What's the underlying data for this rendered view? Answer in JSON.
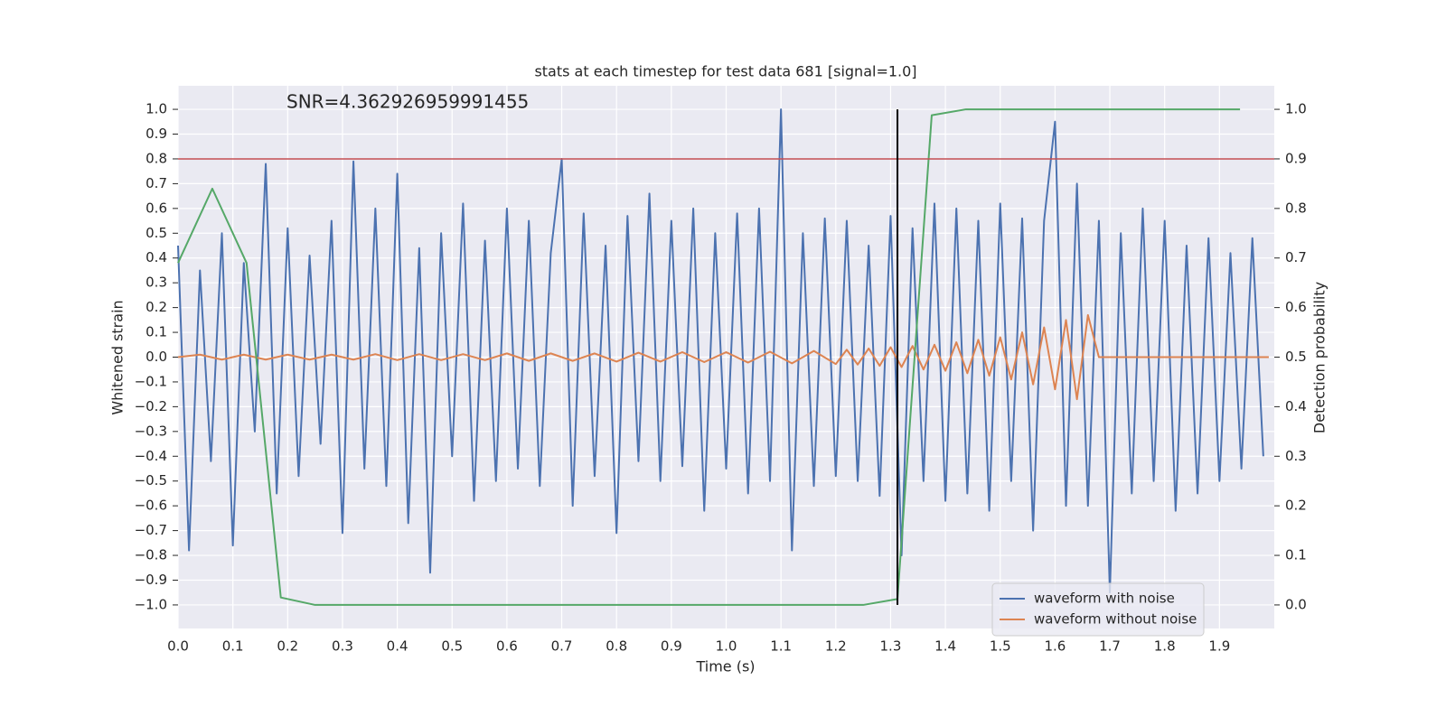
{
  "chart_data": {
    "type": "line",
    "title": "stats at each timestep for test data 681 [signal=1.0]",
    "x_label": "Time (s)",
    "y_label": "Whitened strain",
    "y2_label": "Detection probability",
    "annotation": "SNR=4.362926959991455",
    "background": "#eaeaf2",
    "grid": true,
    "legend": "lower right",
    "xlim": [
      0,
      2.0
    ],
    "ylim": [
      -1.095,
      1.095
    ],
    "y2lim": [
      -0.0475,
      1.0475
    ],
    "xticks": [
      {
        "value": 0,
        "label": "0.0"
      },
      0.1,
      0.2,
      0.3,
      0.4,
      0.5,
      0.6,
      0.7,
      0.8,
      0.9,
      {
        "value": 1,
        "label": "1.0"
      },
      1.1,
      1.2,
      1.3,
      1.4,
      1.5,
      1.6,
      1.7,
      1.8,
      1.9
    ],
    "yticks": [
      {
        "value": -1,
        "label": "−1.0"
      },
      {
        "value": -0.9,
        "label": "−0.9"
      },
      {
        "value": -0.8,
        "label": "−0.8"
      },
      {
        "value": -0.7,
        "label": "−0.7"
      },
      {
        "value": -0.6,
        "label": "−0.6"
      },
      {
        "value": -0.5,
        "label": "−0.5"
      },
      {
        "value": -0.4,
        "label": "−0.4"
      },
      {
        "value": -0.3,
        "label": "−0.3"
      },
      {
        "value": -0.2,
        "label": "−0.2"
      },
      {
        "value": -0.1,
        "label": "−0.1"
      },
      {
        "value": 0,
        "label": "0.0"
      },
      0.1,
      0.2,
      0.3,
      0.4,
      0.5,
      0.6,
      0.7,
      0.8,
      0.9,
      {
        "value": 1,
        "label": "1.0"
      }
    ],
    "y2ticks": [
      {
        "value": 0,
        "label": "0.0"
      },
      0.1,
      0.2,
      0.3,
      0.4,
      0.5,
      0.6,
      0.7,
      0.8,
      0.9,
      {
        "value": 1,
        "label": "1.0"
      }
    ],
    "hline": {
      "y": 0.8,
      "color": "#c44e52"
    },
    "vline": {
      "x": 1.3125,
      "ymin": -1,
      "ymax": 1,
      "color": "#000000"
    },
    "series": [
      {
        "name": "waveform with noise",
        "color": "#4c72b0",
        "x": [
          0,
          0.02,
          0.04,
          0.06,
          0.08,
          0.1,
          0.12,
          0.14,
          0.16,
          0.18,
          0.2,
          0.22,
          0.24,
          0.26,
          0.28,
          0.3,
          0.32,
          0.34,
          0.36,
          0.38,
          0.4,
          0.42,
          0.44,
          0.46,
          0.48,
          0.5,
          0.52,
          0.54,
          0.56,
          0.58,
          0.6,
          0.62,
          0.64,
          0.66,
          0.68,
          0.7,
          0.72,
          0.74,
          0.76,
          0.78,
          0.8,
          0.82,
          0.84,
          0.86,
          0.88,
          0.9,
          0.92,
          0.94,
          0.96,
          0.98,
          1,
          1.02,
          1.04,
          1.06,
          1.08,
          1.1,
          1.12,
          1.14,
          1.16,
          1.18,
          1.2,
          1.22,
          1.24,
          1.26,
          1.28,
          1.3,
          1.32,
          1.34,
          1.36,
          1.38,
          1.4,
          1.42,
          1.44,
          1.46,
          1.48,
          1.5,
          1.52,
          1.54,
          1.56,
          1.58,
          1.6,
          1.62,
          1.64,
          1.66,
          1.68,
          1.7,
          1.72,
          1.74,
          1.76,
          1.78,
          1.8,
          1.82,
          1.84,
          1.86,
          1.88,
          1.9,
          1.92,
          1.94,
          1.96,
          1.98
        ],
        "values": [
          0.45,
          -0.78,
          0.35,
          -0.42,
          0.5,
          -0.76,
          0.38,
          -0.3,
          0.78,
          -0.55,
          0.52,
          -0.48,
          0.41,
          -0.35,
          0.55,
          -0.71,
          0.79,
          -0.45,
          0.6,
          -0.52,
          0.74,
          -0.67,
          0.44,
          -0.87,
          0.5,
          -0.4,
          0.62,
          -0.58,
          0.47,
          -0.5,
          0.6,
          -0.45,
          0.55,
          -0.52,
          0.42,
          0.8,
          -0.6,
          0.58,
          -0.48,
          0.45,
          -0.71,
          0.57,
          -0.42,
          0.66,
          -0.5,
          0.55,
          -0.44,
          0.6,
          -0.62,
          0.5,
          -0.45,
          0.58,
          -0.55,
          0.6,
          -0.5,
          1.0,
          -0.78,
          0.5,
          -0.52,
          0.56,
          -0.48,
          0.55,
          -0.5,
          0.45,
          -0.56,
          0.57,
          -0.8,
          0.52,
          -0.5,
          0.62,
          -0.58,
          0.6,
          -0.55,
          0.55,
          -0.62,
          0.62,
          -0.5,
          0.56,
          -0.7,
          0.55,
          0.95,
          -0.6,
          0.7,
          -0.6,
          0.55,
          -0.95,
          0.5,
          -0.55,
          0.6,
          -0.5,
          0.55,
          -0.62,
          0.45,
          -0.55,
          0.48,
          -0.5,
          0.42,
          -0.45,
          0.48,
          -0.4
        ]
      },
      {
        "name": "waveform without noise",
        "color": "#dd8452",
        "x": [
          0,
          0.04,
          0.08,
          0.12,
          0.16,
          0.2,
          0.24,
          0.28,
          0.32,
          0.36,
          0.4,
          0.44,
          0.48,
          0.52,
          0.56,
          0.6,
          0.64,
          0.68,
          0.72,
          0.76,
          0.8,
          0.84,
          0.88,
          0.92,
          0.96,
          1,
          1.04,
          1.08,
          1.12,
          1.16,
          1.2,
          1.22,
          1.24,
          1.26,
          1.28,
          1.3,
          1.32,
          1.34,
          1.36,
          1.38,
          1.4,
          1.42,
          1.44,
          1.46,
          1.48,
          1.5,
          1.52,
          1.54,
          1.56,
          1.58,
          1.6,
          1.62,
          1.64,
          1.66,
          1.68,
          1.99
        ],
        "values": [
          0,
          0.01,
          -0.01,
          0.01,
          -0.01,
          0.01,
          -0.01,
          0.01,
          -0.01,
          0.012,
          -0.012,
          0.012,
          -0.012,
          0.012,
          -0.012,
          0.015,
          -0.015,
          0.015,
          -0.015,
          0.015,
          -0.018,
          0.018,
          -0.018,
          0.02,
          -0.02,
          0.02,
          -0.022,
          0.022,
          -0.025,
          0.025,
          -0.028,
          0.03,
          -0.03,
          0.035,
          -0.035,
          0.04,
          -0.04,
          0.045,
          -0.05,
          0.05,
          -0.055,
          0.06,
          -0.065,
          0.07,
          -0.075,
          0.08,
          -0.09,
          0.1,
          -0.11,
          0.12,
          -0.13,
          0.15,
          -0.17,
          0.17,
          0,
          0
        ]
      },
      {
        "color": "#55a868",
        "axis": "y2",
        "x": [
          0,
          0.0625,
          0.125,
          0.1875,
          0.25,
          0.3125,
          0.375,
          0.4375,
          0.5,
          0.5625,
          0.625,
          0.6875,
          0.75,
          0.8125,
          0.875,
          0.9375,
          1,
          1.0625,
          1.125,
          1.1875,
          1.25,
          1.3125,
          1.375,
          1.4375,
          1.5,
          1.5625,
          1.625,
          1.6875,
          1.75,
          1.8125,
          1.875,
          1.9375
        ],
        "values": [
          0.69,
          0.84,
          0.69,
          0.015,
          0,
          0,
          0,
          0,
          0,
          0,
          0,
          0,
          0,
          0,
          0,
          0,
          0,
          0,
          0,
          0,
          0,
          0.012,
          0.988,
          1,
          1,
          1,
          1,
          1,
          1,
          1,
          1,
          1
        ]
      }
    ]
  }
}
